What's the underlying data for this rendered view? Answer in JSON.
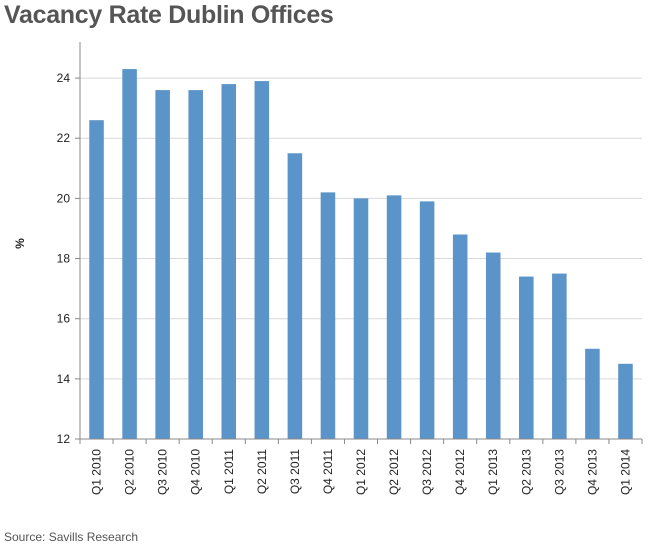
{
  "chart_data": {
    "type": "bar",
    "title": "Vacancy Rate Dublin Offices",
    "ylabel": "%",
    "xlabel": "",
    "ylim": [
      12,
      25
    ],
    "yticks": [
      12,
      14,
      16,
      18,
      20,
      22,
      24
    ],
    "grid": true,
    "categories": [
      "Q1 2010",
      "Q2 2010",
      "Q3 2010",
      "Q4 2010",
      "Q1 2011",
      "Q2 2011",
      "Q3 2011",
      "Q4 2011",
      "Q1 2012",
      "Q2 2012",
      "Q3 2012",
      "Q4 2012",
      "Q1 2013",
      "Q2 2013",
      "Q3 2013",
      "Q4 2013",
      "Q1 2014"
    ],
    "values": [
      22.6,
      24.3,
      23.6,
      23.6,
      23.8,
      23.9,
      21.5,
      20.2,
      20.0,
      20.1,
      19.9,
      18.8,
      18.2,
      17.4,
      17.5,
      15.0,
      14.5
    ],
    "bar_color": "#5b94c8",
    "source": "Source: Savills Research"
  },
  "colors": {
    "bar": "#5b94c8",
    "grid": "#d9d9d9",
    "axis": "#888888"
  }
}
